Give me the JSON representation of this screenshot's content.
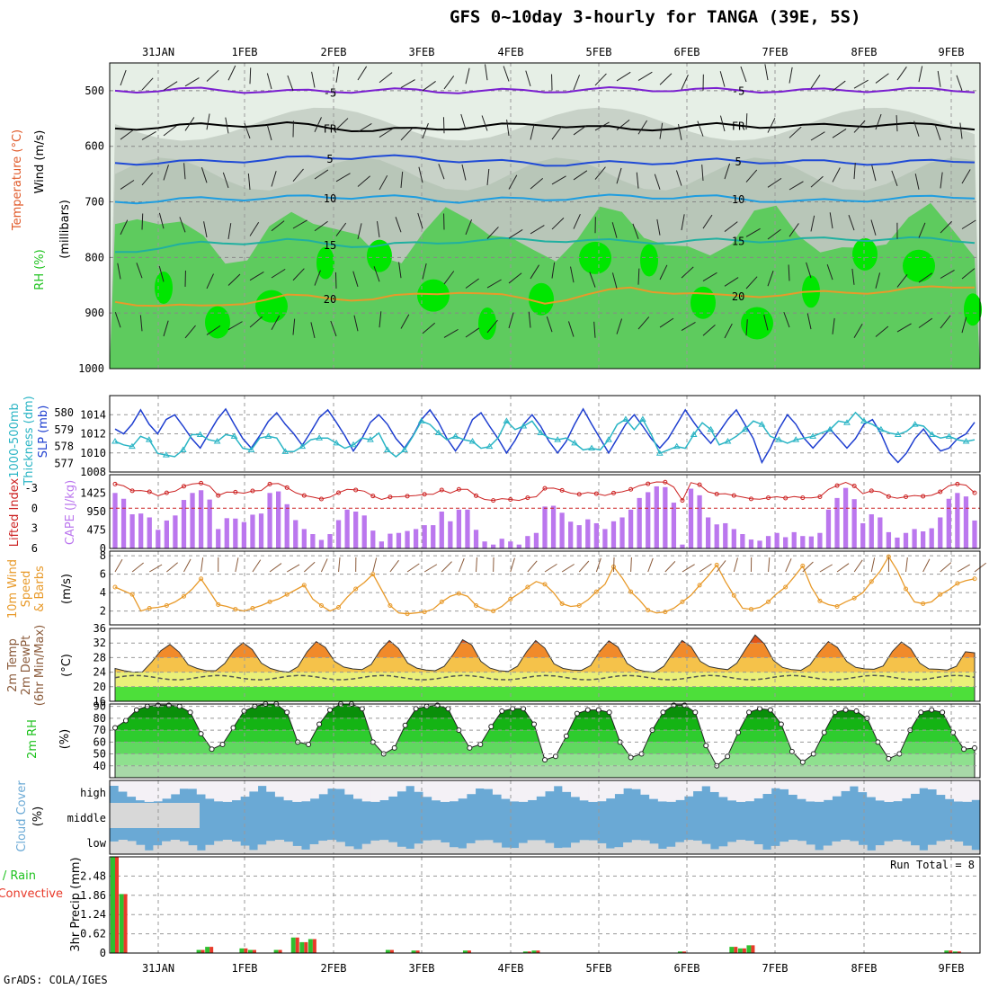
{
  "title": "GFS 0~10day 3-hourly for TANGA (39E, 5S)",
  "credit": "GrADS: COLA/IGES",
  "dates": [
    "31JAN",
    "1FEB",
    "2FEB",
    "3FEB",
    "4FEB",
    "5FEB",
    "6FEB",
    "7FEB",
    "8FEB",
    "9FEB"
  ],
  "colors": {
    "green": "#1ec21e",
    "bright_green": "#00e600",
    "purple": "#bb77ee",
    "blue": "#1f3fd0",
    "cyan": "#2bb5c5",
    "orange": "#e89a2a",
    "red": "#cc2222",
    "cloud": "#6aa9d5",
    "cloud_bg": "#f4f1f6",
    "grey": "#d8d8d8"
  },
  "chart_data": [
    {
      "id": "upper",
      "type": "contour",
      "ylabel": [
        "Wind (m/s)",
        "Temperature (°C)",
        "RH (%)"
      ],
      "ylabel_units": "(millibars)",
      "yticks": [
        500,
        600,
        700,
        800,
        900,
        1000
      ],
      "ylim": [
        450,
        1000
      ],
      "contours": [
        {
          "label": "-5",
          "color": "#7a1fd0",
          "levels": [
            500,
            498,
            502,
            499,
            501,
            500,
            497,
            499,
            500,
            498,
            499
          ]
        },
        {
          "label": "FR",
          "color": "#000000",
          "levels": [
            568,
            562,
            560,
            572,
            566,
            560,
            570,
            562,
            564,
            560,
            566
          ]
        },
        {
          "label": "5",
          "color": "#1f4ad6",
          "levels": [
            630,
            628,
            622,
            618,
            625,
            632,
            630,
            626,
            628,
            630,
            625
          ]
        },
        {
          "label": "10",
          "color": "#1e9de0",
          "levels": [
            700,
            695,
            692,
            690,
            698,
            694,
            690,
            692,
            700,
            694,
            690
          ]
        },
        {
          "label": "15",
          "color": "#20b0a0",
          "levels": [
            790,
            775,
            770,
            780,
            770,
            768,
            772,
            770,
            768,
            766,
            770
          ]
        },
        {
          "label": "20",
          "color": "#e89a2a",
          "levels": [
            880,
            890,
            870,
            875,
            860,
            880,
            855,
            870,
            865,
            860,
            850
          ]
        }
      ]
    },
    {
      "id": "slp",
      "type": "line",
      "ylabel": [
        "1000-500mb",
        "Thickness (dm)"
      ],
      "ylabel_right": "SLP (mb)",
      "ylim_left": [
        576.5,
        581
      ],
      "yticks_left": [
        577,
        578,
        579,
        580
      ],
      "ylim_right": [
        1008,
        1016
      ],
      "yticks_right": [
        1008,
        1010,
        1012,
        1014
      ],
      "series": [
        {
          "color": "#1f3fd0",
          "axis": "right",
          "values": [
            1012.5,
            1012.0,
            1013.0,
            1014.5,
            1013.0,
            1012.0,
            1013.5,
            1014.0,
            1012.8,
            1011.5,
            1010.5,
            1012.0,
            1013.5,
            1014.6,
            1013.0,
            1011.5,
            1010.5,
            1011.8,
            1013.3,
            1014.2,
            1013.0,
            1012.0,
            1010.8,
            1012.2,
            1013.7,
            1014.5,
            1013.2,
            1011.8,
            1010.2,
            1011.5,
            1013.2,
            1014.0,
            1013.0,
            1011.5,
            1010.5,
            1011.8,
            1013.5,
            1014.5,
            1013.2,
            1011.5,
            1010.2,
            1011.5,
            1013.5,
            1014.2,
            1012.8,
            1011.5,
            1010.0,
            1011.3,
            1013.0,
            1014.0,
            1012.8,
            1011.2,
            1010.0,
            1011.2,
            1013.0,
            1014.6,
            1013.0,
            1011.5,
            1010.0,
            1011.5,
            1013.0,
            1014.0,
            1012.8,
            1011.5,
            1010.5,
            1011.5,
            1013.0,
            1014.5,
            1013.2,
            1012.0,
            1011.0,
            1012.2,
            1013.5,
            1014.5,
            1013.0,
            1011.5,
            1009.0,
            1010.5,
            1012.5,
            1014.0,
            1013.0,
            1011.5,
            1010.5,
            1011.5,
            1012.5,
            1011.5,
            1010.5,
            1011.5,
            1013.0,
            1013.5,
            1012.0,
            1010.0,
            1009.0,
            1010.0,
            1011.5,
            1012.5,
            1011.2,
            1010.2,
            1010.5,
            1011.5,
            1012.0,
            1013.2
          ]
        },
        {
          "color": "#2bb5c5",
          "axis": "left",
          "marker": "triangle",
          "values": [
            578.3,
            578.1,
            578.0,
            578.6,
            578.4,
            577.6,
            577.5,
            577.4,
            577.8,
            578.7,
            578.7,
            578.4,
            578.3,
            578.7,
            578.6,
            577.9,
            577.8,
            578.5,
            578.6,
            578.5,
            577.7,
            577.7,
            578.0,
            578.4,
            578.5,
            578.5,
            578.2,
            577.9,
            578.1,
            578.5,
            578.4,
            578.8,
            577.8,
            577.4,
            577.8,
            578.6,
            579.5,
            579.3,
            578.8,
            578.4,
            578.6,
            578.4,
            578.3,
            577.9,
            578.0,
            578.5,
            579.5,
            579.0,
            579.2,
            579.5,
            578.8,
            578.5,
            578.4,
            578.5,
            578.2,
            577.8,
            577.9,
            577.8,
            578.4,
            579.3,
            579.6,
            579.0,
            579.6,
            578.7,
            577.6,
            577.8,
            578.0,
            577.9,
            578.7,
            579.4,
            579.0,
            578.1,
            578.3,
            578.6,
            579.0,
            579.5,
            579.3,
            578.6,
            578.4,
            578.2,
            578.4,
            578.5,
            578.6,
            578.8,
            579.0,
            579.5,
            579.4,
            580.0,
            579.5,
            579.3,
            579.0,
            578.8,
            578.7,
            578.9,
            579.3,
            579.2,
            578.7,
            578.5,
            578.6,
            578.4,
            578.3,
            578.4
          ]
        }
      ]
    },
    {
      "id": "cape",
      "type": "bar",
      "ylabel_left": "Lifted Index",
      "ylabel_right": "CAPE (J/kg)",
      "ylim_cape": [
        0,
        1900
      ],
      "yticks_cape": [
        0,
        475,
        950,
        1425
      ],
      "yticks_li": [
        6,
        3,
        0,
        -3
      ],
      "cape": [
        1430,
        1280,
        880,
        900,
        800,
        480,
        720,
        850,
        1250,
        1430,
        1500,
        1260,
        500,
        780,
        770,
        680,
        870,
        900,
        1430,
        1470,
        1140,
        730,
        500,
        370,
        220,
        370,
        730,
        1000,
        950,
        850,
        460,
        180,
        380,
        400,
        450,
        500,
        600,
        600,
        950,
        700,
        1000,
        1000,
        480,
        180,
        100,
        250,
        180,
        100,
        320,
        400,
        1080,
        1100,
        920,
        690,
        600,
        750,
        650,
        500,
        700,
        800,
        1000,
        1300,
        1450,
        1600,
        1580,
        1180,
        100,
        1540,
        1370,
        800,
        620,
        650,
        500,
        370,
        230,
        200,
        320,
        400,
        290,
        420,
        320,
        310,
        400,
        1000,
        1300,
        1560,
        1270,
        650,
        880,
        800,
        420,
        280,
        400,
        500,
        440,
        520,
        800,
        1280,
        1430,
        1340,
        720
      ]
    },
    {
      "id": "wind10m",
      "type": "line",
      "ylabel": [
        "10m Wind",
        "Speed",
        "& Barbs"
      ],
      "ylabel_units": "(m/s)",
      "ylim": [
        0.5,
        8.5
      ],
      "yticks": [
        2,
        4,
        6,
        8
      ],
      "values": [
        4.6,
        4.2,
        3.8,
        2.0,
        2.3,
        2.4,
        2.6,
        3.0,
        3.6,
        4.4,
        5.5,
        4.1,
        2.7,
        2.5,
        2.2,
        2.0,
        2.3,
        2.6,
        3.0,
        3.3,
        3.8,
        4.3,
        4.8,
        3.3,
        2.6,
        2.0,
        2.4,
        3.5,
        4.4,
        5.1,
        6.0,
        4.3,
        2.6,
        1.8,
        1.7,
        1.8,
        1.9,
        2.2,
        3.0,
        3.6,
        3.9,
        3.6,
        2.6,
        2.2,
        2.0,
        2.5,
        3.3,
        3.9,
        4.6,
        5.2,
        4.9,
        4.0,
        2.8,
        2.5,
        2.6,
        3.2,
        4.1,
        4.9,
        6.8,
        5.6,
        4.1,
        3.2,
        2.1,
        1.8,
        1.9,
        2.3,
        3.0,
        3.7,
        4.8,
        5.8,
        7.0,
        5.2,
        3.7,
        2.3,
        2.2,
        2.4,
        3.0,
        3.9,
        4.6,
        5.7,
        6.9,
        4.6,
        3.1,
        2.7,
        2.5,
        3.0,
        3.4,
        4.0,
        5.2,
        6.3,
        7.9,
        6.4,
        4.4,
        3.0,
        2.8,
        3.0,
        3.8,
        4.3,
        5.0,
        5.3,
        5.5
      ]
    },
    {
      "id": "temp2m",
      "type": "area",
      "ylabel": [
        "2m Temp",
        "2m DewPt",
        "(6hr Min/Max)"
      ],
      "ylabel_units": "(°C)",
      "ylim": [
        16,
        36
      ],
      "yticks": [
        16,
        20,
        24,
        28,
        32,
        36
      ],
      "temp": [
        25.0,
        24.4,
        24.0,
        24.1,
        26.8,
        29.9,
        31.6,
        29.5,
        26.0,
        25.0,
        24.4,
        24.4,
        26.4,
        30.0,
        32.1,
        30.2,
        26.5,
        25.0,
        24.3,
        24.0,
        25.5,
        29.6,
        32.4,
        30.8,
        27.0,
        25.4,
        24.9,
        24.7,
        26.1,
        30.0,
        32.7,
        30.5,
        26.5,
        25.1,
        24.6,
        24.4,
        25.6,
        29.0,
        32.9,
        31.5,
        27.0,
        25.1,
        24.4,
        24.2,
        25.6,
        29.6,
        32.7,
        30.6,
        26.3,
        25.0,
        24.6,
        24.5,
        25.8,
        29.7,
        32.6,
        30.9,
        26.4,
        24.8,
        24.2,
        24.0,
        25.6,
        29.3,
        32.7,
        31.0,
        27.0,
        25.5,
        25.0,
        24.7,
        26.5,
        30.5,
        34.2,
        31.8,
        27.2,
        25.3,
        24.7,
        24.5,
        26.0,
        29.5,
        32.4,
        30.8,
        27.0,
        25.3,
        24.9,
        24.8,
        25.7,
        29.7,
        32.3,
        30.5,
        26.5,
        24.9,
        24.8,
        24.6,
        25.6,
        29.6,
        29.3
      ]
    },
    {
      "id": "rh2m",
      "type": "area",
      "ylabel": "2m RH",
      "ylabel_units": "(%)",
      "ylim": [
        30,
        92
      ],
      "yticks": [
        40,
        50,
        60,
        70,
        80,
        90
      ],
      "values": [
        72,
        78,
        87,
        90,
        91,
        91,
        90,
        85,
        67,
        54,
        58,
        72,
        86,
        90,
        92,
        92,
        85,
        60,
        58,
        75,
        87,
        92,
        92,
        88,
        60,
        50,
        55,
        74,
        88,
        90,
        91,
        88,
        70,
        55,
        58,
        73,
        86,
        88,
        88,
        75,
        45,
        48,
        65,
        84,
        87,
        87,
        85,
        60,
        47,
        50,
        70,
        85,
        91,
        91,
        85,
        57,
        40,
        48,
        68,
        85,
        88,
        87,
        75,
        52,
        43,
        50,
        68,
        85,
        87,
        86,
        80,
        60,
        46,
        50,
        70,
        85,
        87,
        85,
        68,
        54,
        55
      ]
    },
    {
      "id": "cloud",
      "type": "heatmap",
      "ylabel": [
        "Cloud Cover",
        "(%)"
      ],
      "levels": [
        "high",
        "middle",
        "low"
      ]
    },
    {
      "id": "precip",
      "type": "bar",
      "ylabel": [
        "Total / Rain",
        "Convective"
      ],
      "ylabel_units": "3hr Precip (mm)",
      "ylim": [
        0,
        3.1
      ],
      "yticks": [
        0,
        0.62,
        1.24,
        1.86,
        2.48
      ],
      "annotation": "Run Total = 8",
      "total": [
        3.1,
        1.9,
        0,
        0,
        0,
        0,
        0,
        0,
        0,
        0,
        0.1,
        0.2,
        0,
        0,
        0,
        0.15,
        0.1,
        0,
        0,
        0.1,
        0,
        0.5,
        0.35,
        0.45,
        0,
        0,
        0,
        0,
        0,
        0,
        0,
        0,
        0.1,
        0,
        0,
        0.08,
        0,
        0,
        0,
        0,
        0,
        0.08,
        0,
        0,
        0,
        0,
        0,
        0,
        0.05,
        0.08,
        0,
        0,
        0,
        0,
        0,
        0,
        0,
        0,
        0,
        0,
        0,
        0,
        0,
        0,
        0,
        0,
        0.05,
        0,
        0,
        0,
        0,
        0,
        0.2,
        0.15,
        0.25,
        0,
        0,
        0,
        0,
        0,
        0,
        0,
        0,
        0,
        0,
        0,
        0,
        0,
        0,
        0,
        0,
        0,
        0,
        0,
        0,
        0,
        0,
        0.08,
        0.05,
        0,
        0
      ],
      "conv": [
        3.1,
        1.9,
        0,
        0,
        0,
        0,
        0,
        0,
        0,
        0,
        0.1,
        0.2,
        0,
        0,
        0,
        0.15,
        0.1,
        0,
        0,
        0.1,
        0,
        0.5,
        0.35,
        0.45,
        0,
        0,
        0,
        0,
        0,
        0,
        0,
        0,
        0.1,
        0,
        0,
        0.08,
        0,
        0,
        0,
        0,
        0,
        0.08,
        0,
        0,
        0,
        0,
        0,
        0,
        0.05,
        0.08,
        0,
        0,
        0,
        0,
        0,
        0,
        0,
        0,
        0,
        0,
        0,
        0,
        0,
        0,
        0,
        0,
        0.05,
        0,
        0,
        0,
        0,
        0,
        0.2,
        0.15,
        0.25,
        0,
        0,
        0,
        0,
        0,
        0,
        0,
        0,
        0,
        0,
        0,
        0,
        0,
        0,
        0,
        0,
        0,
        0,
        0,
        0,
        0,
        0,
        0.08,
        0.05,
        0,
        0
      ]
    }
  ]
}
